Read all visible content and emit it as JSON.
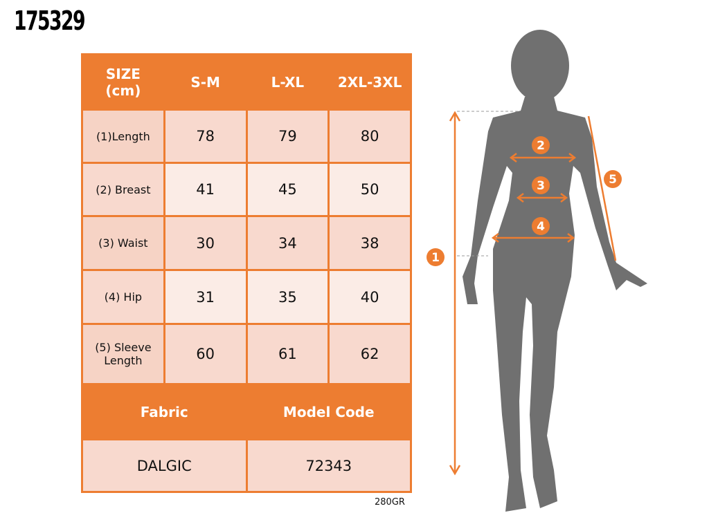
{
  "product_code": "175329",
  "table": {
    "header": [
      "SIZE\n(cm)",
      "S-M",
      "L-XL",
      "2XL-3XL"
    ],
    "rows": [
      {
        "label": "(1)Length",
        "values": [
          "78",
          "79",
          "80"
        ]
      },
      {
        "label": "(2) Breast",
        "values": [
          "41",
          "45",
          "50"
        ]
      },
      {
        "label": "(3) Waist",
        "values": [
          "30",
          "34",
          "38"
        ]
      },
      {
        "label": "(4) Hip",
        "values": [
          "31",
          "35",
          "40"
        ]
      },
      {
        "label": "(5) Sleeve Length",
        "values": [
          "60",
          "61",
          "62"
        ]
      }
    ],
    "footer_headers": [
      "Fabric",
      "Model Code"
    ],
    "footer_values": [
      "DALGIC",
      "72343"
    ]
  },
  "weight": "280GR",
  "figure": {
    "markers": [
      "1",
      "2",
      "3",
      "4",
      "5"
    ]
  },
  "colors": {
    "accent": "#ED7D31",
    "cell": "#F8D9CE",
    "cell_light": "#FBECE6",
    "silhouette": "#707070"
  }
}
